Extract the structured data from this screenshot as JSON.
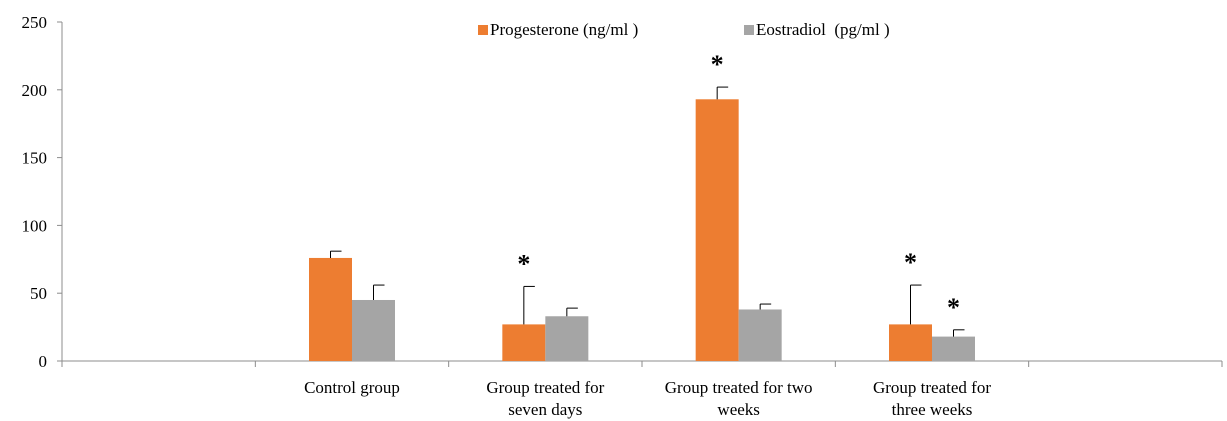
{
  "chart_data": {
    "type": "bar",
    "title": "",
    "xlabel": "",
    "ylabel": "",
    "ylim": [
      0,
      250
    ],
    "yticks": [
      0,
      50,
      100,
      150,
      200,
      250
    ],
    "grid": false,
    "legend_position": "top",
    "categories": [
      [
        "Control group"
      ],
      [
        "Group treated for",
        "seven days"
      ],
      [
        "Group treated for two",
        "weeks"
      ],
      [
        "Group treated for",
        "three weeks"
      ]
    ],
    "empty_slots": {
      "before": 1,
      "after": 1
    },
    "series": [
      {
        "name": "Progesterone (ng/ml )",
        "color": "#ed7d31",
        "values": [
          76,
          27,
          193,
          27
        ],
        "error_plus": [
          5,
          28,
          9,
          29
        ],
        "significance": [
          "",
          "*",
          "*",
          "*"
        ]
      },
      {
        "name": "Eostradiol  (pg/ml )",
        "color": "#a5a5a5",
        "values": [
          45,
          33,
          38,
          18
        ],
        "error_plus": [
          11,
          6,
          4,
          5
        ],
        "significance": [
          "",
          "",
          "",
          "*"
        ]
      }
    ]
  }
}
